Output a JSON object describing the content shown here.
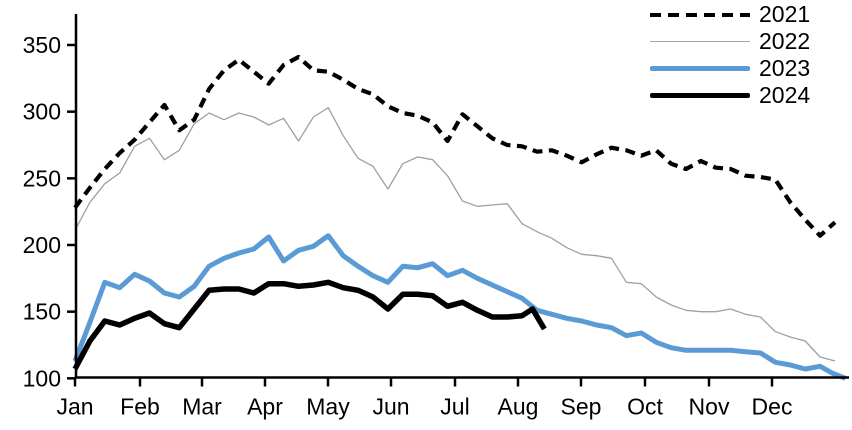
{
  "chart_data": {
    "type": "line",
    "title": "",
    "xlabel": "",
    "ylabel": "",
    "x_axis": {
      "tick_labels": [
        "Jan",
        "Feb",
        "Mar",
        "Apr",
        "May",
        "Jun",
        "Jul",
        "Aug",
        "Sep",
        "Oct",
        "Nov",
        "Dec"
      ]
    },
    "y_axis": {
      "tick_labels": [
        350,
        300,
        250,
        200,
        150,
        100
      ],
      "range_shown": [
        100,
        350
      ],
      "grid": false
    },
    "legend": {
      "position": "top-right",
      "items": [
        {
          "label": "2021",
          "style": "dashed",
          "color": "#000000"
        },
        {
          "label": "2022",
          "style": "thin-solid",
          "color": "#a6a6a6"
        },
        {
          "label": "2023",
          "style": "thick-solid",
          "color": "#5b9bd5"
        },
        {
          "label": "2024",
          "style": "thick-solid",
          "color": "#000000"
        }
      ]
    },
    "resolution": "weekly",
    "series": [
      {
        "name": "2021",
        "color": "#000000",
        "dashed": true,
        "width": 4.2,
        "points": [
          [
            1,
            228
          ],
          [
            2,
            243
          ],
          [
            3,
            257
          ],
          [
            4,
            269
          ],
          [
            5,
            279
          ],
          [
            6,
            292
          ],
          [
            7,
            305
          ],
          [
            8,
            286
          ],
          [
            9,
            294
          ],
          [
            10,
            317
          ],
          [
            11,
            331
          ],
          [
            12,
            339
          ],
          [
            13,
            330
          ],
          [
            14,
            321
          ],
          [
            15,
            335
          ],
          [
            16,
            341
          ],
          [
            17,
            331
          ],
          [
            18,
            330
          ],
          [
            19,
            324
          ],
          [
            20,
            317
          ],
          [
            21,
            313
          ],
          [
            22,
            304
          ],
          [
            23,
            299
          ],
          [
            24,
            297
          ],
          [
            25,
            292
          ],
          [
            26,
            278
          ],
          [
            27,
            298
          ],
          [
            28,
            289
          ],
          [
            29,
            280
          ],
          [
            30,
            275
          ],
          [
            31,
            274
          ],
          [
            32,
            270
          ],
          [
            33,
            271
          ],
          [
            34,
            267
          ],
          [
            35,
            262
          ],
          [
            36,
            268
          ],
          [
            37,
            273
          ],
          [
            38,
            271
          ],
          [
            39,
            267
          ],
          [
            40,
            271
          ],
          [
            41,
            261
          ],
          [
            42,
            257
          ],
          [
            43,
            263
          ],
          [
            44,
            258
          ],
          [
            45,
            257
          ],
          [
            46,
            252
          ],
          [
            47,
            251
          ],
          [
            48,
            249
          ],
          [
            49,
            232
          ],
          [
            50,
            219
          ],
          [
            51,
            207
          ],
          [
            52,
            217
          ]
        ]
      },
      {
        "name": "2022",
        "color": "#a0a0a0",
        "dashed": false,
        "width": 1.3,
        "points": [
          [
            1,
            211
          ],
          [
            2,
            232
          ],
          [
            3,
            246
          ],
          [
            4,
            254
          ],
          [
            5,
            274
          ],
          [
            6,
            280
          ],
          [
            7,
            264
          ],
          [
            8,
            271
          ],
          [
            9,
            291
          ],
          [
            10,
            299
          ],
          [
            11,
            294
          ],
          [
            12,
            299
          ],
          [
            13,
            296
          ],
          [
            14,
            290
          ],
          [
            15,
            295
          ],
          [
            16,
            278
          ],
          [
            17,
            296
          ],
          [
            18,
            303
          ],
          [
            19,
            282
          ],
          [
            20,
            265
          ],
          [
            21,
            259
          ],
          [
            22,
            242
          ],
          [
            23,
            261
          ],
          [
            24,
            266
          ],
          [
            25,
            264
          ],
          [
            26,
            252
          ],
          [
            27,
            233
          ],
          [
            28,
            229
          ],
          [
            29,
            230
          ],
          [
            30,
            231
          ],
          [
            31,
            216
          ],
          [
            32,
            210
          ],
          [
            33,
            205
          ],
          [
            34,
            198
          ],
          [
            35,
            193
          ],
          [
            36,
            192
          ],
          [
            37,
            190
          ],
          [
            38,
            172
          ],
          [
            39,
            171
          ],
          [
            40,
            161
          ],
          [
            41,
            155
          ],
          [
            42,
            151
          ],
          [
            43,
            150
          ],
          [
            44,
            150
          ],
          [
            45,
            152
          ],
          [
            46,
            148
          ],
          [
            47,
            146
          ],
          [
            48,
            135
          ],
          [
            49,
            131
          ],
          [
            50,
            128
          ],
          [
            51,
            116
          ],
          [
            52,
            113
          ]
        ]
      },
      {
        "name": "2023",
        "color": "#5b9bd5",
        "dashed": false,
        "width": 5,
        "points": [
          [
            1,
            113
          ],
          [
            2,
            142
          ],
          [
            3,
            172
          ],
          [
            4,
            168
          ],
          [
            5,
            178
          ],
          [
            6,
            173
          ],
          [
            7,
            164
          ],
          [
            8,
            161
          ],
          [
            9,
            169
          ],
          [
            10,
            184
          ],
          [
            11,
            190
          ],
          [
            12,
            194
          ],
          [
            13,
            197
          ],
          [
            14,
            206
          ],
          [
            15,
            188
          ],
          [
            16,
            196
          ],
          [
            17,
            199
          ],
          [
            18,
            207
          ],
          [
            19,
            192
          ],
          [
            20,
            184
          ],
          [
            21,
            177
          ],
          [
            22,
            172
          ],
          [
            23,
            184
          ],
          [
            24,
            183
          ],
          [
            25,
            186
          ],
          [
            26,
            177
          ],
          [
            27,
            181
          ],
          [
            28,
            175
          ],
          [
            29,
            170
          ],
          [
            30,
            165
          ],
          [
            31,
            160
          ],
          [
            32,
            151
          ],
          [
            33,
            148
          ],
          [
            34,
            145
          ],
          [
            35,
            143
          ],
          [
            36,
            140
          ],
          [
            37,
            138
          ],
          [
            38,
            132
          ],
          [
            39,
            134
          ],
          [
            40,
            127
          ],
          [
            41,
            123
          ],
          [
            42,
            121
          ],
          [
            43,
            121
          ],
          [
            44,
            121
          ],
          [
            45,
            121
          ],
          [
            46,
            120
          ],
          [
            47,
            119
          ],
          [
            48,
            112
          ],
          [
            49,
            110
          ],
          [
            50,
            107
          ],
          [
            51,
            109
          ],
          [
            51.8,
            104
          ],
          [
            52.7,
            100
          ]
        ]
      },
      {
        "name": "2024",
        "color": "#000000",
        "dashed": false,
        "width": 5.5,
        "points": [
          [
            1,
            107
          ],
          [
            2,
            128
          ],
          [
            3,
            143
          ],
          [
            4,
            140
          ],
          [
            5,
            145
          ],
          [
            6,
            149
          ],
          [
            7,
            141
          ],
          [
            8,
            138
          ],
          [
            9,
            152
          ],
          [
            10,
            166
          ],
          [
            11,
            167
          ],
          [
            12,
            167
          ],
          [
            13,
            164
          ],
          [
            14,
            171
          ],
          [
            15,
            171
          ],
          [
            16,
            169
          ],
          [
            17,
            170
          ],
          [
            18,
            172
          ],
          [
            19,
            168
          ],
          [
            20,
            166
          ],
          [
            21,
            161
          ],
          [
            22,
            152
          ],
          [
            23,
            163
          ],
          [
            24,
            163
          ],
          [
            25,
            162
          ],
          [
            26,
            154
          ],
          [
            27,
            157
          ],
          [
            28,
            151
          ],
          [
            29,
            146
          ],
          [
            30,
            146
          ],
          [
            31,
            147
          ],
          [
            31.7,
            152
          ],
          [
            32.5,
            137
          ]
        ]
      }
    ]
  }
}
